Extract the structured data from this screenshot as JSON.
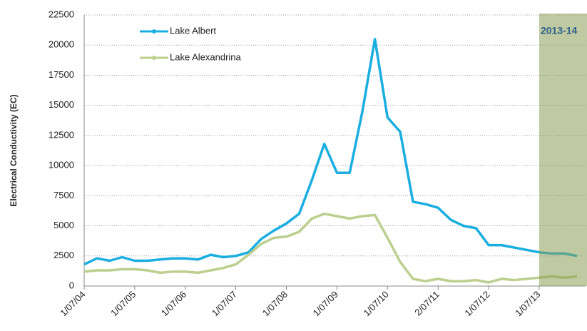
{
  "chart_data": {
    "type": "line",
    "y_label": "Electrical Conductivity (EC)",
    "x": [
      "2004-07-01",
      "2004-10-01",
      "2005-01-01",
      "2005-04-01",
      "2005-07-01",
      "2005-10-01",
      "2006-01-01",
      "2006-04-01",
      "2006-07-01",
      "2006-10-01",
      "2007-01-01",
      "2007-04-01",
      "2007-07-01",
      "2007-10-01",
      "2008-01-01",
      "2008-04-01",
      "2008-07-01",
      "2008-10-01",
      "2009-01-01",
      "2009-04-01",
      "2009-07-01",
      "2009-10-01",
      "2010-01-01",
      "2010-04-01",
      "2010-07-01",
      "2010-10-01",
      "2011-01-01",
      "2011-04-01",
      "2011-07-01",
      "2011-10-01",
      "2012-01-01",
      "2012-04-01",
      "2012-07-01",
      "2012-10-01",
      "2013-01-01",
      "2013-04-01",
      "2013-07-01",
      "2013-10-01",
      "2014-01-01",
      "2014-04-01"
    ],
    "series": [
      {
        "name": "Lake Albert",
        "color": "#1aaee0",
        "values": [
          1800,
          2300,
          2100,
          2400,
          2100,
          2100,
          2200,
          2300,
          2300,
          2200,
          2600,
          2400,
          2500,
          2800,
          3900,
          4600,
          5200,
          6000,
          8800,
          11800,
          9400,
          9400,
          14500,
          20500,
          14000,
          12800,
          7000,
          6800,
          6500,
          5500,
          5000,
          4800,
          3400,
          3400,
          3200,
          3000,
          2800,
          2700,
          2700,
          2500
        ]
      },
      {
        "name": "Lake Alexandrina",
        "color": "#bccf8e",
        "values": [
          1200,
          1300,
          1300,
          1400,
          1400,
          1300,
          1100,
          1200,
          1200,
          1100,
          1300,
          1500,
          1800,
          2600,
          3500,
          4000,
          4100,
          4500,
          5600,
          6000,
          5800,
          5600,
          5800,
          5900,
          4000,
          2000,
          600,
          400,
          600,
          400,
          400,
          500,
          300,
          600,
          500,
          600,
          700,
          800,
          700,
          800
        ]
      }
    ],
    "xlim": [
      "2004-07-01",
      "2014-06-01"
    ],
    "xticks": [
      {
        "value": "2004-07-01",
        "label": "1/07/04"
      },
      {
        "value": "2005-07-01",
        "label": "1/07/05"
      },
      {
        "value": "2006-07-01",
        "label": "1/07/06"
      },
      {
        "value": "2007-07-01",
        "label": "1/07/07"
      },
      {
        "value": "2008-07-01",
        "label": "1/07/08"
      },
      {
        "value": "2009-07-01",
        "label": "1/07/09"
      },
      {
        "value": "2010-07-01",
        "label": "1/07/10"
      },
      {
        "value": "2011-07-02",
        "label": "2/07/11"
      },
      {
        "value": "2012-07-01",
        "label": "1/07/12"
      },
      {
        "value": "2013-07-01",
        "label": "1/07/13"
      }
    ],
    "ylim": [
      0,
      22500
    ],
    "yticks": [
      0,
      2500,
      5000,
      7500,
      10000,
      12500,
      15000,
      17500,
      20000,
      22500
    ],
    "grid": true,
    "shaded_period": {
      "label": "2013-14",
      "from": "2013-07-01",
      "color": "#8a9f55"
    }
  }
}
